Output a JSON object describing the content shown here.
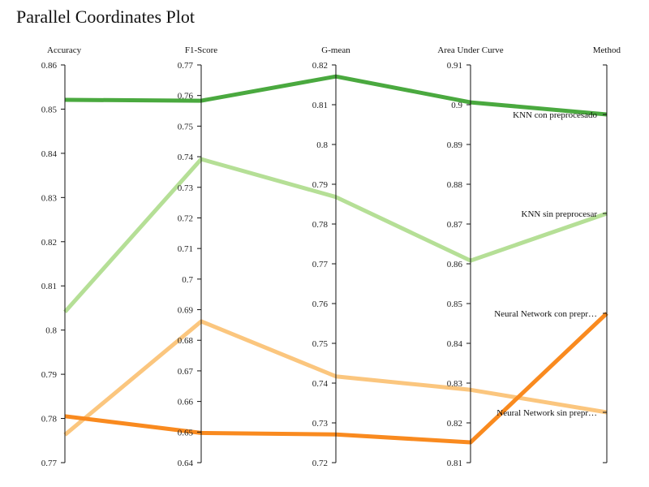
{
  "chart_data": {
    "type": "parallel-coordinates",
    "title": "Parallel Coordinates Plot",
    "axes": [
      {
        "name": "Accuracy",
        "range": [
          0.77,
          0.86
        ],
        "ticks": [
          "0.77",
          "0.78",
          "0.79",
          "0.8",
          "0.81",
          "0.82",
          "0.83",
          "0.84",
          "0.85",
          "0.86"
        ]
      },
      {
        "name": "F1-Score",
        "range": [
          0.64,
          0.77
        ],
        "ticks": [
          "0.64",
          "0.65",
          "0.66",
          "0.67",
          "0.68",
          "0.69",
          "0.7",
          "0.71",
          "0.72",
          "0.73",
          "0.74",
          "0.75",
          "0.76",
          "0.77"
        ]
      },
      {
        "name": "G-mean",
        "range": [
          0.72,
          0.82
        ],
        "ticks": [
          "0.72",
          "0.73",
          "0.74",
          "0.75",
          "0.76",
          "0.77",
          "0.78",
          "0.79",
          "0.8",
          "0.81",
          "0.82"
        ]
      },
      {
        "name": "Area Under Curve",
        "range": [
          0.81,
          0.91
        ],
        "ticks": [
          "0.81",
          "0.82",
          "0.83",
          "0.84",
          "0.85",
          "0.86",
          "0.87",
          "0.88",
          "0.89",
          "0.9",
          "0.91"
        ]
      },
      {
        "name": "Method",
        "categorical": true
      }
    ],
    "series": [
      {
        "name": "KNN con preprocesado",
        "label": "KNN con preprocesado",
        "color": "#4aa93f",
        "values": [
          0.8521,
          0.7583,
          0.8171,
          0.9006
        ]
      },
      {
        "name": "KNN sin preprocesar",
        "label": "KNN sin preprocesar",
        "color": "#b5df96",
        "values": [
          0.8041,
          0.7392,
          0.7868,
          0.8608
        ]
      },
      {
        "name": "Neural Network con preprocesado",
        "label": "Neural Network con prepr…",
        "color": "#f98a1f",
        "values": [
          0.7805,
          0.6497,
          0.7271,
          0.8151
        ]
      },
      {
        "name": "Neural Network sin preprocesar",
        "label": "Neural Network sin prepr…",
        "color": "#fbc67e",
        "values": [
          0.7763,
          0.6862,
          0.7417,
          0.8283
        ]
      }
    ]
  }
}
